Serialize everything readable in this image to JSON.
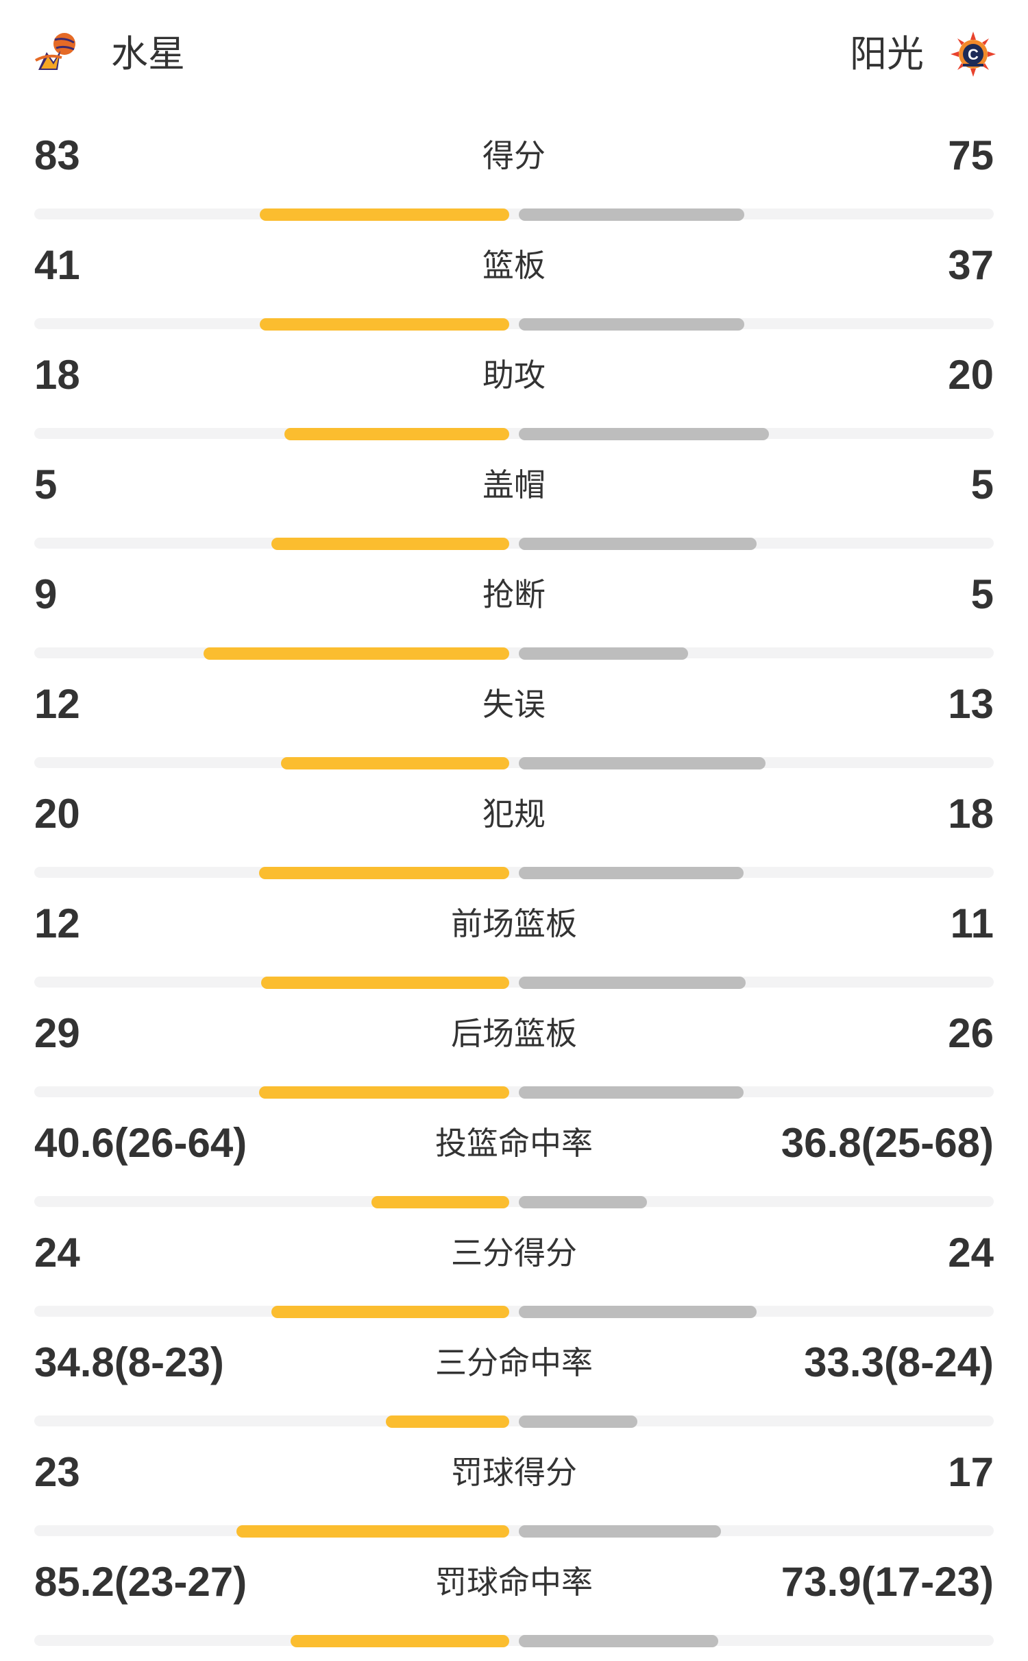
{
  "header": {
    "home_team": "水星",
    "away_team": "阳光",
    "home_logo_icon": "phoenix-mercury-logo-icon",
    "away_logo_icon": "connecticut-sun-logo-icon"
  },
  "colors": {
    "home_bar": "#fbbd2f",
    "away_bar": "#bdbdbd",
    "track": "#f3f3f4",
    "text": "#333333"
  },
  "stats": [
    {
      "label": "得分",
      "home": "83",
      "away": "75",
      "home_fraction": 0.525,
      "away_fraction": 0.475
    },
    {
      "label": "篮板",
      "home": "41",
      "away": "37",
      "home_fraction": 0.525,
      "away_fraction": 0.475
    },
    {
      "label": "助攻",
      "home": "18",
      "away": "20",
      "home_fraction": 0.474,
      "away_fraction": 0.526
    },
    {
      "label": "盖帽",
      "home": "5",
      "away": "5",
      "home_fraction": 0.5,
      "away_fraction": 0.5
    },
    {
      "label": "抢断",
      "home": "9",
      "away": "5",
      "home_fraction": 0.643,
      "away_fraction": 0.357
    },
    {
      "label": "失误",
      "home": "12",
      "away": "13",
      "home_fraction": 0.48,
      "away_fraction": 0.52
    },
    {
      "label": "犯规",
      "home": "20",
      "away": "18",
      "home_fraction": 0.526,
      "away_fraction": 0.474
    },
    {
      "label": "前场篮板",
      "home": "12",
      "away": "11",
      "home_fraction": 0.522,
      "away_fraction": 0.478
    },
    {
      "label": "后场篮板",
      "home": "29",
      "away": "26",
      "home_fraction": 0.527,
      "away_fraction": 0.473
    },
    {
      "label": "投篮命中率",
      "home": "40.6(26-64)",
      "away": "36.8(25-68)",
      "home_fraction": 0.29,
      "away_fraction": 0.27
    },
    {
      "label": "三分得分",
      "home": "24",
      "away": "24",
      "home_fraction": 0.5,
      "away_fraction": 0.5
    },
    {
      "label": "三分命中率",
      "home": "34.8(8-23)",
      "away": "33.3(8-24)",
      "home_fraction": 0.26,
      "away_fraction": 0.25
    },
    {
      "label": "罚球得分",
      "home": "23",
      "away": "17",
      "home_fraction": 0.575,
      "away_fraction": 0.425
    },
    {
      "label": "罚球命中率",
      "home": "85.2(23-27)",
      "away": "73.9(17-23)",
      "home_fraction": 0.46,
      "away_fraction": 0.42
    }
  ]
}
